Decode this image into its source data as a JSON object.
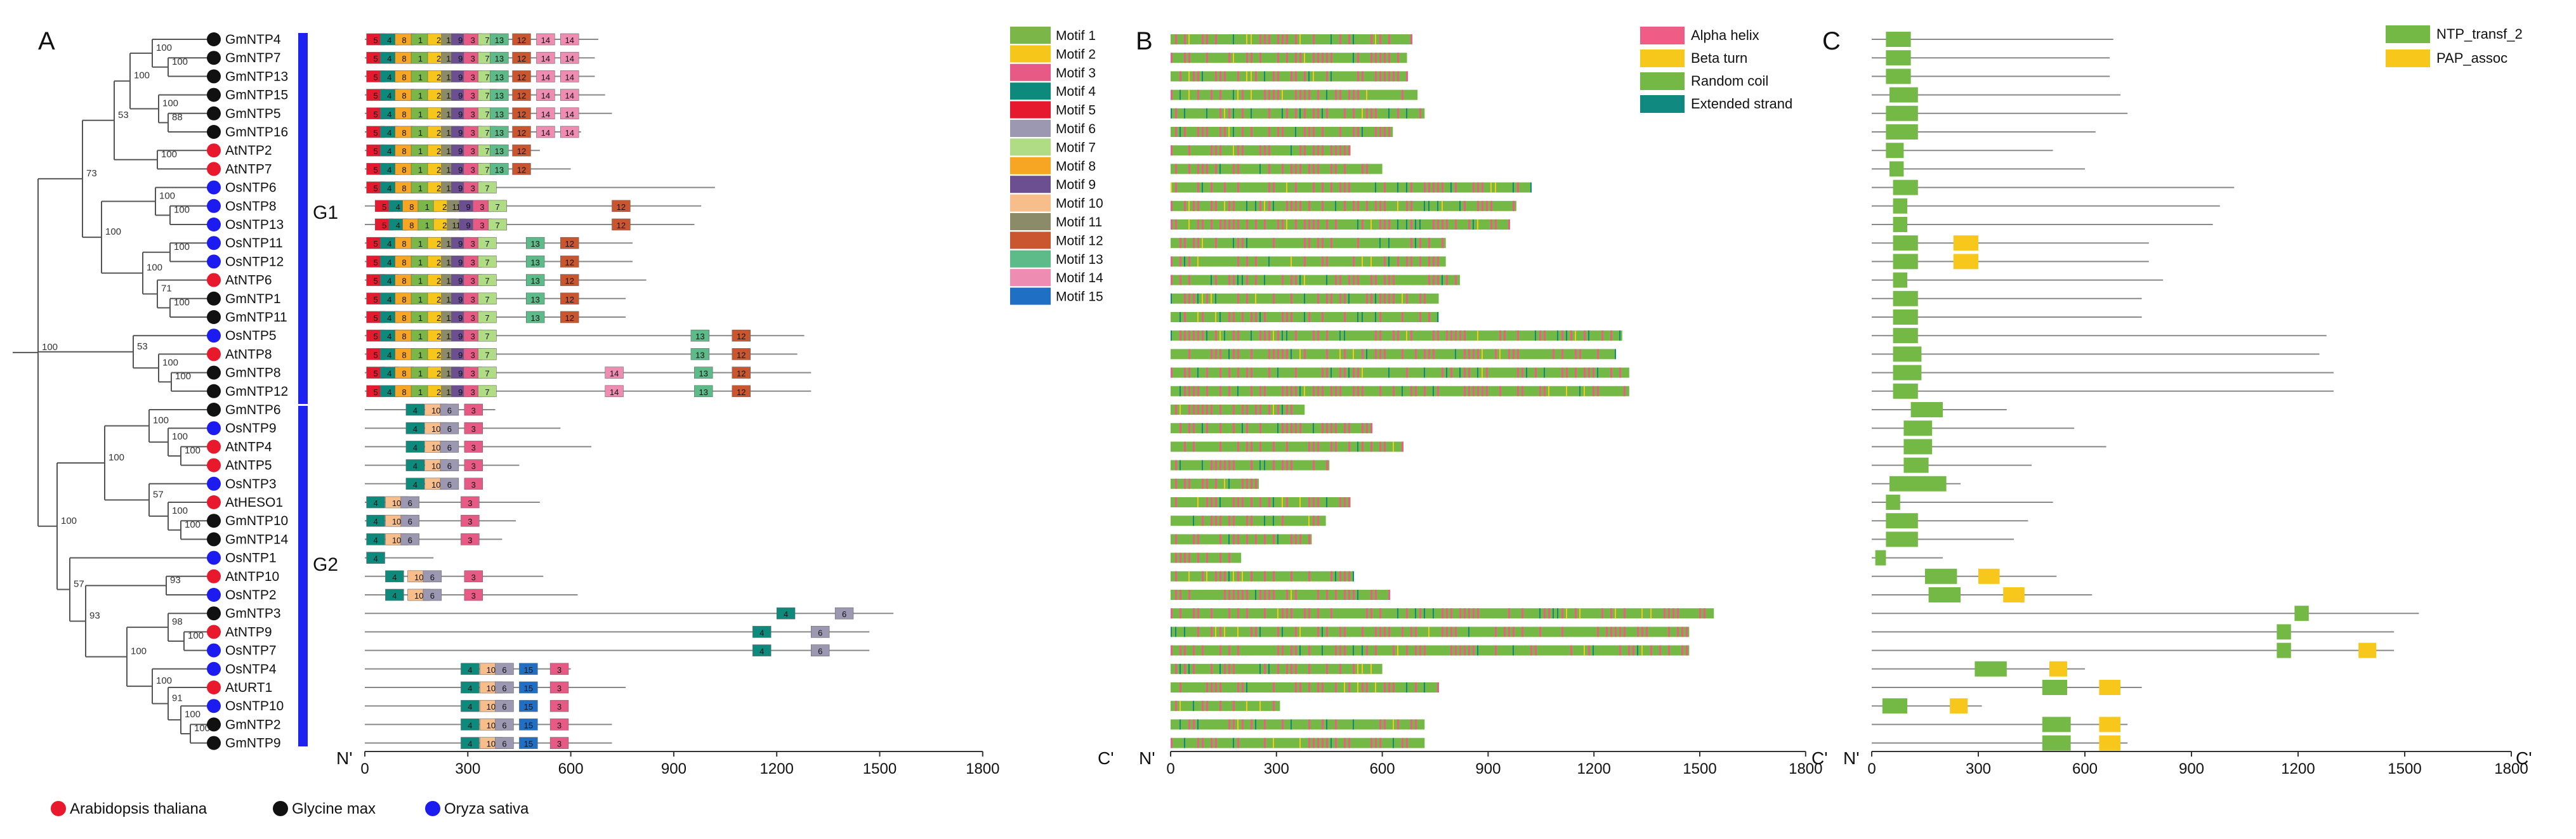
{
  "panels": {
    "a": "A",
    "b": "B",
    "c": "C"
  },
  "groups": {
    "g1": "G1",
    "g2": "G2"
  },
  "genes": [
    {
      "name": "GmNTP4",
      "species": "gm",
      "len": 680
    },
    {
      "name": "GmNTP7",
      "species": "gm",
      "len": 670
    },
    {
      "name": "GmNTP13",
      "species": "gm",
      "len": 670
    },
    {
      "name": "GmNTP15",
      "species": "gm",
      "len": 700
    },
    {
      "name": "GmNTP5",
      "species": "gm",
      "len": 720
    },
    {
      "name": "GmNTP16",
      "species": "gm",
      "len": 630
    },
    {
      "name": "AtNTP2",
      "species": "at",
      "len": 510
    },
    {
      "name": "AtNTP7",
      "species": "at",
      "len": 600
    },
    {
      "name": "OsNTP6",
      "species": "os",
      "len": 1020
    },
    {
      "name": "OsNTP8",
      "species": "os",
      "len": 980
    },
    {
      "name": "OsNTP13",
      "species": "os",
      "len": 960
    },
    {
      "name": "OsNTP11",
      "species": "os",
      "len": 780
    },
    {
      "name": "OsNTP12",
      "species": "os",
      "len": 780
    },
    {
      "name": "AtNTP6",
      "species": "at",
      "len": 820
    },
    {
      "name": "GmNTP1",
      "species": "gm",
      "len": 760
    },
    {
      "name": "GmNTP11",
      "species": "gm",
      "len": 760
    },
    {
      "name": "OsNTP5",
      "species": "os",
      "len": 1280
    },
    {
      "name": "AtNTP8",
      "species": "at",
      "len": 1260
    },
    {
      "name": "GmNTP8",
      "species": "gm",
      "len": 1300
    },
    {
      "name": "GmNTP12",
      "species": "gm",
      "len": 1300
    },
    {
      "name": "GmNTP6",
      "species": "gm",
      "len": 380
    },
    {
      "name": "OsNTP9",
      "species": "os",
      "len": 570
    },
    {
      "name": "AtNTP4",
      "species": "at",
      "len": 660
    },
    {
      "name": "AtNTP5",
      "species": "at",
      "len": 450
    },
    {
      "name": "OsNTP3",
      "species": "os",
      "len": 250
    },
    {
      "name": "AtHESO1",
      "species": "at",
      "len": 510
    },
    {
      "name": "GmNTP10",
      "species": "gm",
      "len": 440
    },
    {
      "name": "GmNTP14",
      "species": "gm",
      "len": 400
    },
    {
      "name": "OsNTP1",
      "species": "os",
      "len": 200
    },
    {
      "name": "AtNTP10",
      "species": "at",
      "len": 520
    },
    {
      "name": "OsNTP2",
      "species": "os",
      "len": 620
    },
    {
      "name": "GmNTP3",
      "species": "gm",
      "len": 1540
    },
    {
      "name": "AtNTP9",
      "species": "at",
      "len": 1470
    },
    {
      "name": "OsNTP7",
      "species": "os",
      "len": 1470
    },
    {
      "name": "OsNTP4",
      "species": "os",
      "len": 600
    },
    {
      "name": "AtURT1",
      "species": "at",
      "len": 760
    },
    {
      "name": "OsNTP10",
      "species": "os",
      "len": 310
    },
    {
      "name": "GmNTP2",
      "species": "gm",
      "len": 720
    },
    {
      "name": "GmNTP9",
      "species": "gm",
      "len": 720
    }
  ],
  "bootstrap": [
    "100",
    "100",
    "100",
    "88",
    "100",
    "100",
    "53",
    "100",
    "100",
    "73",
    "100",
    "71",
    "100",
    "100",
    "100",
    "100",
    "100",
    "53",
    "100",
    "100",
    "100",
    "57",
    "100",
    "100",
    "100",
    "93",
    "100",
    "98",
    "100",
    "100",
    "91",
    "100"
  ],
  "species_legend": [
    {
      "key": "at",
      "label": "Arabidopsis thaliana",
      "color": "#e8192c"
    },
    {
      "key": "gm",
      "label": "Glycine max",
      "color": "#111111"
    },
    {
      "key": "os",
      "label": "Oryza sativa",
      "color": "#1c1cf0"
    }
  ],
  "motif_legend": [
    {
      "id": "1",
      "label": "Motif 1",
      "color": "#7ab648"
    },
    {
      "id": "2",
      "label": "Motif 2",
      "color": "#f7c61b"
    },
    {
      "id": "3",
      "label": "Motif 3",
      "color": "#e85a86"
    },
    {
      "id": "4",
      "label": "Motif 4",
      "color": "#0e8a7c"
    },
    {
      "id": "5",
      "label": "Motif 5",
      "color": "#e51a2e"
    },
    {
      "id": "6",
      "label": "Motif 6",
      "color": "#9c98b1"
    },
    {
      "id": "7",
      "label": "Motif 7",
      "color": "#b1dc86"
    },
    {
      "id": "8",
      "label": "Motif 8",
      "color": "#f6a623"
    },
    {
      "id": "9",
      "label": "Motif 9",
      "color": "#6b4f91"
    },
    {
      "id": "10",
      "label": "Motif 10",
      "color": "#f7be8c"
    },
    {
      "id": "11",
      "label": "Motif 11",
      "color": "#8b8b6a"
    },
    {
      "id": "12",
      "label": "Motif 12",
      "color": "#c9562f"
    },
    {
      "id": "13",
      "label": "Motif 13",
      "color": "#5dbb8a"
    },
    {
      "id": "14",
      "label": "Motif 14",
      "color": "#ef8cb2"
    },
    {
      "id": "15",
      "label": "Motif 15",
      "color": "#1f6fc5"
    }
  ],
  "ss_legend": [
    {
      "label": "Alpha helix",
      "color": "#ef5d86"
    },
    {
      "label": "Beta turn",
      "color": "#f6c81b"
    },
    {
      "label": "Random coil",
      "color": "#74b845"
    },
    {
      "label": "Extended strand",
      "color": "#108a80"
    }
  ],
  "domain_legend": [
    {
      "label": "NTP_transf_2",
      "color": "#74b845"
    },
    {
      "label": "PAP_assoc",
      "color": "#f7c81b"
    }
  ],
  "axis": {
    "n_label": "N'",
    "c_label": "C'",
    "ticks": [
      {
        "v": 0,
        "label": "0"
      },
      {
        "v": 300,
        "label": "300"
      },
      {
        "v": 600,
        "label": "600"
      },
      {
        "v": 900,
        "label": "900"
      },
      {
        "v": 1200,
        "label": "1200"
      },
      {
        "v": 1500,
        "label": "1500"
      },
      {
        "v": 1800,
        "label": "1800"
      }
    ]
  },
  "motif_layouts": {
    "g1a": [
      [
        5,
        "5"
      ],
      [
        45,
        "4"
      ],
      [
        88,
        "8"
      ],
      [
        135,
        "1"
      ],
      [
        183,
        "2"
      ],
      [
        223,
        "11"
      ],
      [
        252,
        "9"
      ],
      [
        288,
        "3"
      ],
      [
        330,
        "7"
      ],
      [
        365,
        "13"
      ],
      [
        430,
        "12"
      ],
      [
        500,
        "14"
      ],
      [
        570,
        "14"
      ]
    ],
    "g1b": [
      [
        5,
        "5"
      ],
      [
        45,
        "4"
      ],
      [
        88,
        "8"
      ],
      [
        135,
        "1"
      ],
      [
        183,
        "2"
      ],
      [
        223,
        "11"
      ],
      [
        252,
        "9"
      ],
      [
        288,
        "3"
      ],
      [
        330,
        "7"
      ],
      [
        365,
        "13"
      ],
      [
        430,
        "12"
      ]
    ],
    "g1c": [
      [
        5,
        "5"
      ],
      [
        45,
        "4"
      ],
      [
        88,
        "8"
      ],
      [
        135,
        "1"
      ],
      [
        183,
        "2"
      ],
      [
        223,
        "11"
      ],
      [
        252,
        "9"
      ],
      [
        288,
        "3"
      ],
      [
        330,
        "7"
      ]
    ],
    "g1o": [
      [
        30,
        "5"
      ],
      [
        70,
        "4"
      ],
      [
        110,
        "8"
      ],
      [
        155,
        "1"
      ],
      [
        200,
        "2"
      ],
      [
        240,
        "11"
      ],
      [
        275,
        "9"
      ],
      [
        315,
        "3"
      ],
      [
        360,
        "7"
      ],
      [
        720,
        "12"
      ]
    ],
    "g1p": [
      [
        5,
        "5"
      ],
      [
        45,
        "4"
      ],
      [
        88,
        "8"
      ],
      [
        135,
        "1"
      ],
      [
        183,
        "2"
      ],
      [
        223,
        "11"
      ],
      [
        252,
        "9"
      ],
      [
        288,
        "3"
      ],
      [
        330,
        "7"
      ],
      [
        470,
        "13"
      ],
      [
        570,
        "12"
      ]
    ],
    "g1q": [
      [
        5,
        "5"
      ],
      [
        45,
        "4"
      ],
      [
        88,
        "8"
      ],
      [
        135,
        "1"
      ],
      [
        183,
        "2"
      ],
      [
        223,
        "11"
      ],
      [
        252,
        "9"
      ],
      [
        288,
        "3"
      ],
      [
        330,
        "7"
      ],
      [
        950,
        "13"
      ],
      [
        1070,
        "12"
      ]
    ],
    "g1r": [
      [
        5,
        "5"
      ],
      [
        45,
        "4"
      ],
      [
        88,
        "8"
      ],
      [
        135,
        "1"
      ],
      [
        183,
        "2"
      ],
      [
        223,
        "11"
      ],
      [
        252,
        "9"
      ],
      [
        288,
        "3"
      ],
      [
        330,
        "7"
      ],
      [
        700,
        "14"
      ],
      [
        960,
        "13"
      ],
      [
        1070,
        "12"
      ]
    ],
    "g2a": [
      [
        120,
        "4"
      ],
      [
        175,
        "10"
      ],
      [
        220,
        "6"
      ],
      [
        290,
        "3"
      ]
    ],
    "g2b": [
      [
        60,
        "4"
      ],
      [
        125,
        "10"
      ],
      [
        170,
        "6"
      ],
      [
        290,
        "3"
      ]
    ],
    "g2c": [
      [
        5,
        "4"
      ],
      [
        60,
        "10"
      ],
      [
        105,
        "6"
      ],
      [
        280,
        "3"
      ]
    ],
    "g2d": [
      [
        280,
        "4"
      ],
      [
        335,
        "10"
      ],
      [
        380,
        "6"
      ],
      [
        450,
        "15"
      ],
      [
        540,
        "3"
      ]
    ]
  },
  "domain_data": [
    [
      [
        40,
        110,
        "n"
      ]
    ],
    [
      [
        40,
        110,
        "n"
      ]
    ],
    [
      [
        40,
        110,
        "n"
      ]
    ],
    [
      [
        50,
        130,
        "n"
      ]
    ],
    [
      [
        40,
        130,
        "n"
      ]
    ],
    [
      [
        40,
        130,
        "n"
      ]
    ],
    [
      [
        40,
        90,
        "n"
      ]
    ],
    [
      [
        50,
        90,
        "n"
      ]
    ],
    [
      [
        60,
        130,
        "n"
      ]
    ],
    [
      [
        60,
        100,
        "n"
      ]
    ],
    [
      [
        60,
        100,
        "n"
      ]
    ],
    [
      [
        60,
        130,
        "n"
      ],
      [
        230,
        300,
        "p"
      ]
    ],
    [
      [
        60,
        130,
        "n"
      ],
      [
        230,
        300,
        "p"
      ]
    ],
    [
      [
        60,
        100,
        "n"
      ]
    ],
    [
      [
        60,
        130,
        "n"
      ]
    ],
    [
      [
        60,
        130,
        "n"
      ]
    ],
    [
      [
        60,
        130,
        "n"
      ]
    ],
    [
      [
        60,
        140,
        "n"
      ]
    ],
    [
      [
        60,
        140,
        "n"
      ]
    ],
    [
      [
        60,
        130,
        "n"
      ]
    ],
    [
      [
        110,
        200,
        "n"
      ]
    ],
    [
      [
        90,
        170,
        "n"
      ]
    ],
    [
      [
        90,
        170,
        "n"
      ]
    ],
    [
      [
        90,
        160,
        "n"
      ]
    ],
    [
      [
        50,
        210,
        "n"
      ]
    ],
    [
      [
        40,
        80,
        "n"
      ]
    ],
    [
      [
        40,
        130,
        "n"
      ]
    ],
    [
      [
        40,
        130,
        "n"
      ]
    ],
    [
      [
        10,
        40,
        "n"
      ]
    ],
    [
      [
        150,
        240,
        "n"
      ],
      [
        300,
        360,
        "p"
      ]
    ],
    [
      [
        160,
        250,
        "n"
      ],
      [
        370,
        430,
        "p"
      ]
    ],
    [
      [
        1190,
        1230,
        "n"
      ]
    ],
    [
      [
        1140,
        1180,
        "n"
      ]
    ],
    [
      [
        1140,
        1180,
        "n"
      ],
      [
        1370,
        1420,
        "p"
      ]
    ],
    [
      [
        290,
        380,
        "n"
      ],
      [
        500,
        550,
        "p"
      ]
    ],
    [
      [
        480,
        550,
        "n"
      ],
      [
        640,
        700,
        "p"
      ]
    ],
    [
      [
        30,
        100,
        "n"
      ],
      [
        220,
        270,
        "p"
      ]
    ],
    [
      [
        480,
        560,
        "n"
      ],
      [
        640,
        700,
        "p"
      ]
    ],
    [
      [
        480,
        560,
        "n"
      ],
      [
        640,
        700,
        "p"
      ]
    ]
  ]
}
